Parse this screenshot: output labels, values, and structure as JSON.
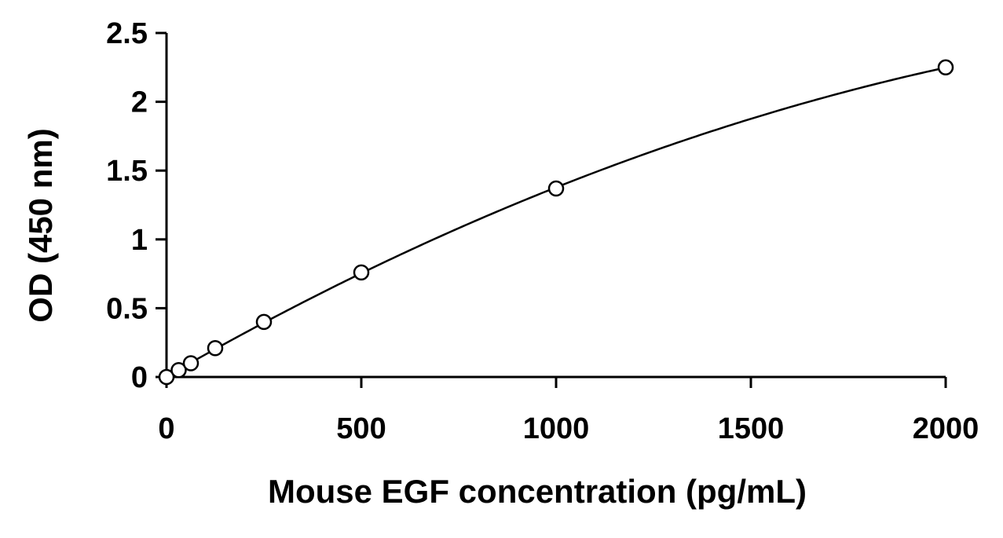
{
  "chart_data": {
    "type": "scatter",
    "title": "",
    "xlabel": "Mouse EGF concentration (pg/mL)",
    "ylabel": "OD (450 nm)",
    "xlim": [
      0,
      2000
    ],
    "ylim": [
      0,
      2.5
    ],
    "x_ticks": [
      0,
      500,
      1000,
      1500,
      2000
    ],
    "x_tick_labels": [
      "0",
      "500",
      "1000",
      "1500",
      "2000"
    ],
    "y_ticks": [
      0,
      0.5,
      1,
      1.5,
      2,
      2.5
    ],
    "y_tick_labels": [
      "0",
      "0.5",
      "1",
      "1.5",
      "2",
      "2.5"
    ],
    "grid": false,
    "legend": "none",
    "marker": "open-circle",
    "trendline": "smooth-fit",
    "series": [
      {
        "x": [
          0,
          31.25,
          62.5,
          125,
          250,
          500,
          1000,
          2000
        ],
        "y": [
          0.0,
          0.05,
          0.1,
          0.21,
          0.4,
          0.76,
          1.37,
          2.25
        ]
      }
    ],
    "colors": {
      "line": "#000000",
      "marker": "#000000"
    }
  }
}
